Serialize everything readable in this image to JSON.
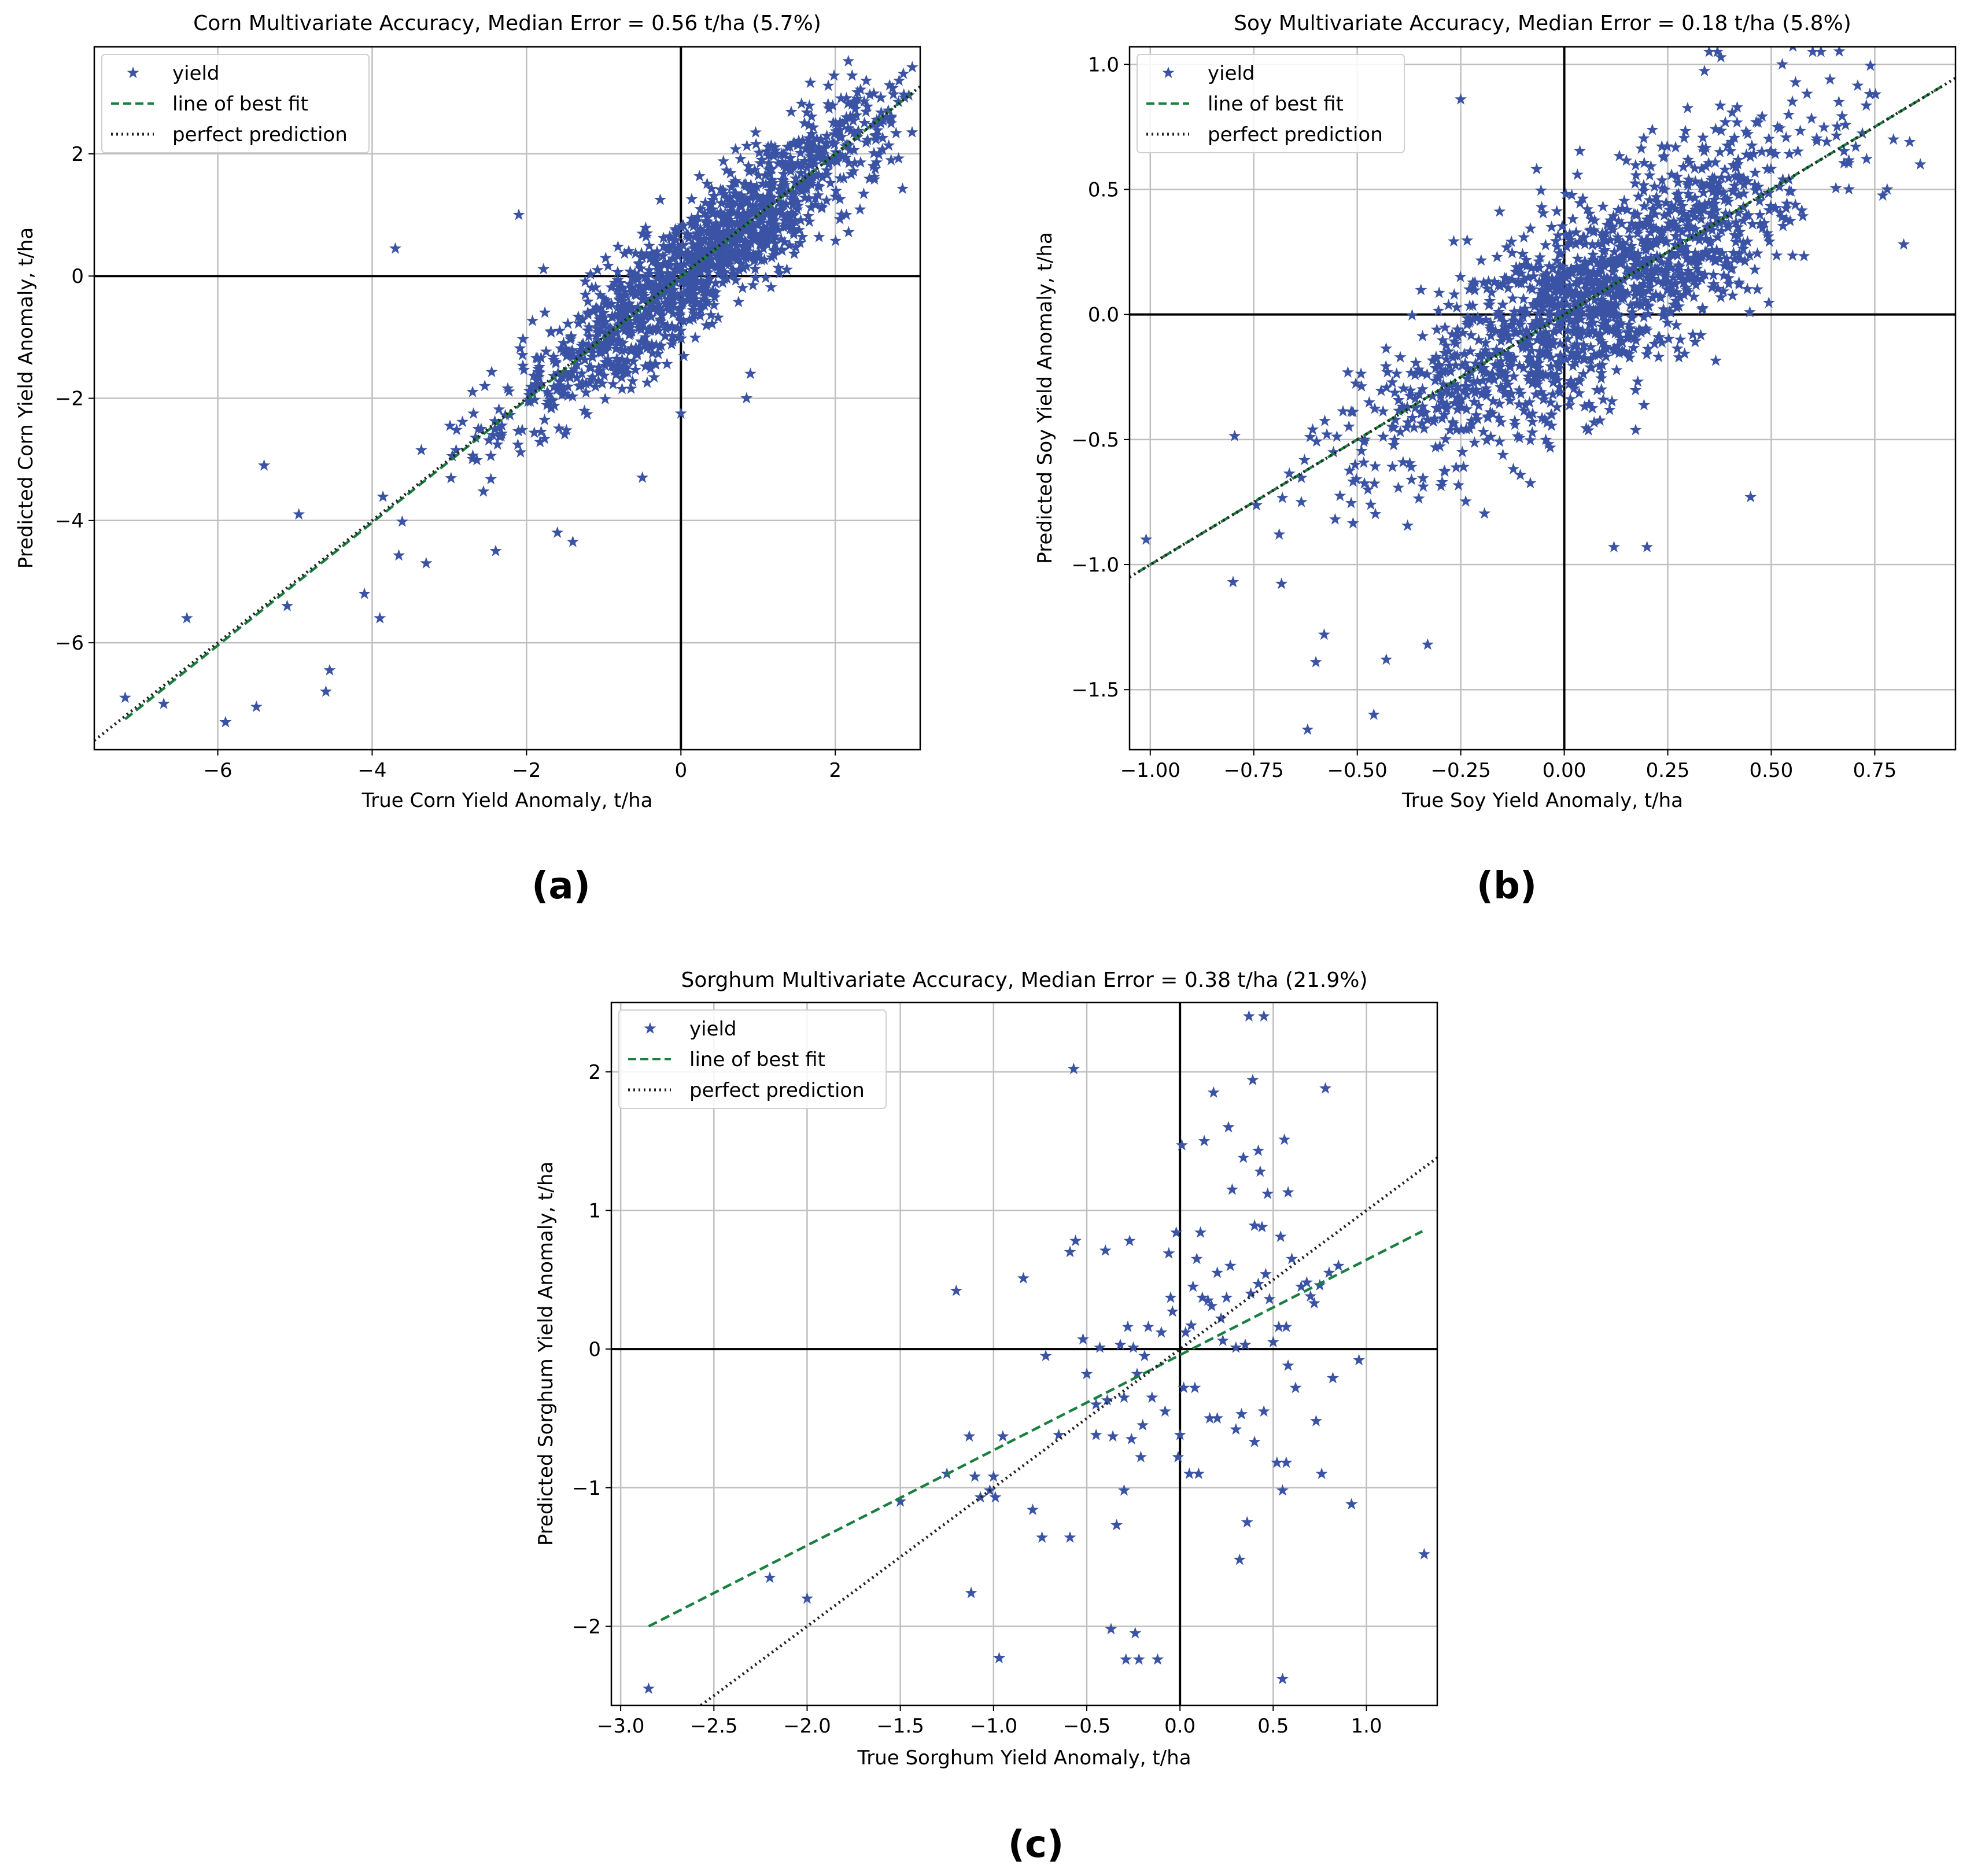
{
  "colors": {
    "points": "#3a53a4",
    "fit": "#1a8040",
    "perfect": "#222222",
    "grid": "#bfbfbf",
    "axis_zero": "#000000",
    "frame": "#000000"
  },
  "chart_data": [
    {
      "type": "scatter",
      "id": "corn",
      "caption": "(a)",
      "title": "Corn Multivariate Accuracy, Median Error = 0.56 t/ha (5.7%)",
      "xlabel": "True Corn Yield Anomaly, t/ha",
      "ylabel": "Predicted Corn Yield Anomaly, t/ha",
      "xlim": [
        -7.6,
        3.1
      ],
      "ylim": [
        -7.75,
        3.75
      ],
      "xticks": [
        -6,
        -4,
        -2,
        0,
        2
      ],
      "yticks": [
        -6,
        -4,
        -2,
        0,
        2
      ],
      "xtick_labels": [
        "−6",
        "−4",
        "−2",
        "0",
        "2"
      ],
      "ytick_labels": [
        "−6",
        "−4",
        "−2",
        "0",
        "2"
      ],
      "grid": true,
      "legend": {
        "position": "top-left",
        "entries": [
          "yield",
          "line of best fit",
          "perfect prediction"
        ]
      },
      "series": [
        {
          "name": "yield",
          "kind": "points",
          "generator": {
            "n": 1400,
            "x_range": [
              -7.2,
              3.0
            ],
            "slope": 0.99,
            "noise": 0.5,
            "center": 0.3,
            "spread": 1.3,
            "seed": 11
          }
        },
        {
          "name": "line of best fit",
          "kind": "line",
          "x": [
            -7.2,
            3.0
          ],
          "y": [
            -7.25,
            3.0
          ]
        },
        {
          "name": "perfect prediction",
          "kind": "line",
          "x": [
            -7.6,
            3.1
          ],
          "y": [
            -7.6,
            3.1
          ]
        }
      ],
      "outliers": [
        [
          -7.2,
          -6.9
        ],
        [
          -6.7,
          -7.0
        ],
        [
          -6.4,
          -5.6
        ],
        [
          -5.9,
          -7.3
        ],
        [
          -5.5,
          -7.05
        ],
        [
          -5.4,
          -3.1
        ],
        [
          -5.1,
          -5.4
        ],
        [
          -4.95,
          -3.9
        ],
        [
          -4.6,
          -6.8
        ],
        [
          -4.55,
          -6.45
        ],
        [
          -4.1,
          -5.2
        ],
        [
          -3.9,
          -5.6
        ],
        [
          -3.7,
          0.45
        ],
        [
          -3.3,
          -4.7
        ],
        [
          -2.4,
          -4.5
        ],
        [
          -2.1,
          1.0
        ],
        [
          -1.6,
          -4.2
        ],
        [
          -1.4,
          -4.35
        ],
        [
          -0.5,
          -3.3
        ],
        [
          0.0,
          -2.25
        ],
        [
          0.85,
          -2.0
        ],
        [
          0.9,
          -1.6
        ]
      ]
    },
    {
      "type": "scatter",
      "id": "soy",
      "caption": "(b)",
      "title": "Soy Multivariate Accuracy, Median Error = 0.18 t/ha (5.8%)",
      "xlabel": "True Soy Yield Anomaly, t/ha",
      "ylabel": "Predicted Soy Yield Anomaly, t/ha",
      "xlim": [
        -1.05,
        0.945
      ],
      "ylim": [
        -1.74,
        1.07
      ],
      "xticks": [
        -1.0,
        -0.75,
        -0.5,
        -0.25,
        0.0,
        0.25,
        0.5,
        0.75
      ],
      "yticks": [
        -1.5,
        -1.0,
        -0.5,
        0.0,
        0.5,
        1.0
      ],
      "xtick_labels": [
        "−1.00",
        "−0.75",
        "−0.50",
        "−0.25",
        "0.00",
        "0.25",
        "0.50",
        "0.75"
      ],
      "ytick_labels": [
        "−1.5",
        "−1.0",
        "−0.5",
        "0.0",
        "0.5",
        "1.0"
      ],
      "grid": true,
      "legend": {
        "position": "top-left",
        "entries": [
          "yield",
          "line of best fit",
          "perfect prediction"
        ]
      },
      "series": [
        {
          "name": "yield",
          "kind": "points",
          "generator": {
            "n": 1500,
            "x_range": [
              -1.02,
              0.85
            ],
            "slope": 1.0,
            "noise": 0.2,
            "center": 0.05,
            "spread": 0.27,
            "seed": 23
          }
        },
        {
          "name": "line of best fit",
          "kind": "line",
          "x": [
            -1.03,
            0.92
          ],
          "y": [
            -1.03,
            0.92
          ]
        },
        {
          "name": "perfect prediction",
          "kind": "line",
          "x": [
            -1.05,
            0.945
          ],
          "y": [
            -1.05,
            0.945
          ]
        }
      ],
      "outliers": [
        [
          -1.01,
          -0.9
        ],
        [
          -0.8,
          -1.07
        ],
        [
          -0.62,
          -1.66
        ],
        [
          -0.6,
          -1.39
        ],
        [
          -0.58,
          -1.28
        ],
        [
          -0.46,
          -1.6
        ],
        [
          -0.43,
          -1.38
        ],
        [
          -0.33,
          -1.32
        ],
        [
          -0.25,
          0.86
        ],
        [
          0.35,
          1.05
        ],
        [
          0.37,
          1.05
        ],
        [
          0.6,
          1.05
        ],
        [
          0.62,
          1.05
        ],
        [
          0.82,
          0.28
        ],
        [
          0.45,
          -0.73
        ],
        [
          0.2,
          -0.93
        ],
        [
          0.12,
          -0.93
        ],
        [
          0.78,
          0.5
        ],
        [
          0.86,
          0.6
        ]
      ]
    },
    {
      "type": "scatter",
      "id": "sorghum",
      "caption": "(c)",
      "title": "Sorghum Multivariate Accuracy, Median Error = 0.38 t/ha (21.9%)",
      "xlabel": "True Sorghum Yield Anomaly, t/ha",
      "ylabel": "Predicted Sorghum Yield Anomaly, t/ha",
      "xlim": [
        -3.05,
        1.38
      ],
      "ylim": [
        -2.57,
        2.5
      ],
      "xticks": [
        -3.0,
        -2.5,
        -2.0,
        -1.5,
        -1.0,
        -0.5,
        0.0,
        0.5,
        1.0
      ],
      "yticks": [
        -2,
        -1,
        0,
        1,
        2
      ],
      "xtick_labels": [
        "−3.0",
        "−2.5",
        "−2.0",
        "−1.5",
        "−1.0",
        "−0.5",
        "0.0",
        "0.5",
        "1.0"
      ],
      "ytick_labels": [
        "−2",
        "−1",
        "0",
        "1",
        "2"
      ],
      "grid": true,
      "legend": {
        "position": "top-left",
        "entries": [
          "yield",
          "line of best fit",
          "perfect prediction"
        ]
      },
      "series": [
        {
          "name": "yield",
          "kind": "points",
          "points": [
            [
              -2.85,
              -2.45
            ],
            [
              -2.2,
              -1.65
            ],
            [
              -2.0,
              -1.8
            ],
            [
              -1.5,
              -1.1
            ],
            [
              -1.25,
              -0.9
            ],
            [
              -1.2,
              0.42
            ],
            [
              -1.13,
              -0.63
            ],
            [
              -1.12,
              -1.76
            ],
            [
              -1.1,
              -0.92
            ],
            [
              -1.07,
              -1.07
            ],
            [
              -1.02,
              -1.02
            ],
            [
              -1.0,
              -0.92
            ],
            [
              -0.99,
              -1.07
            ],
            [
              -0.97,
              -2.23
            ],
            [
              -0.95,
              -0.63
            ],
            [
              -0.84,
              0.51
            ],
            [
              -0.79,
              -1.16
            ],
            [
              -0.74,
              -1.36
            ],
            [
              -0.72,
              -0.05
            ],
            [
              -0.65,
              -0.62
            ],
            [
              -0.59,
              0.7
            ],
            [
              -0.59,
              -1.36
            ],
            [
              -0.57,
              2.02
            ],
            [
              -0.56,
              0.78
            ],
            [
              -0.52,
              0.07
            ],
            [
              -0.5,
              -0.18
            ],
            [
              -0.45,
              -0.4
            ],
            [
              -0.45,
              -0.62
            ],
            [
              -0.43,
              0.01
            ],
            [
              -0.4,
              0.71
            ],
            [
              -0.39,
              -0.37
            ],
            [
              -0.37,
              -2.02
            ],
            [
              -0.36,
              -0.63
            ],
            [
              -0.34,
              -1.27
            ],
            [
              -0.32,
              0.03
            ],
            [
              -0.3,
              -0.35
            ],
            [
              -0.3,
              -1.02
            ],
            [
              -0.29,
              -2.24
            ],
            [
              -0.28,
              0.16
            ],
            [
              -0.27,
              0.78
            ],
            [
              -0.26,
              -0.65
            ],
            [
              -0.25,
              0.01
            ],
            [
              -0.24,
              -2.05
            ],
            [
              -0.23,
              -0.18
            ],
            [
              -0.22,
              -2.24
            ],
            [
              -0.21,
              -0.78
            ],
            [
              -0.2,
              -0.55
            ],
            [
              -0.19,
              -0.05
            ],
            [
              -0.17,
              0.16
            ],
            [
              -0.15,
              -0.35
            ],
            [
              -0.12,
              -2.24
            ],
            [
              -0.1,
              0.12
            ],
            [
              -0.08,
              -0.45
            ],
            [
              -0.06,
              0.69
            ],
            [
              -0.05,
              0.37
            ],
            [
              -0.04,
              0.27
            ],
            [
              -0.02,
              0.84
            ],
            [
              -0.01,
              -0.78
            ],
            [
              0.0,
              -0.62
            ],
            [
              0.01,
              1.47
            ],
            [
              0.02,
              -0.28
            ],
            [
              0.03,
              0.12
            ],
            [
              0.05,
              -0.9
            ],
            [
              0.06,
              0.17
            ],
            [
              0.07,
              0.45
            ],
            [
              0.08,
              -0.28
            ],
            [
              0.09,
              0.65
            ],
            [
              0.1,
              -0.9
            ],
            [
              0.11,
              0.84
            ],
            [
              0.12,
              0.37
            ],
            [
              0.13,
              1.5
            ],
            [
              0.15,
              0.35
            ],
            [
              0.16,
              -0.5
            ],
            [
              0.17,
              0.31
            ],
            [
              0.18,
              1.85
            ],
            [
              0.2,
              0.55
            ],
            [
              0.2,
              -0.5
            ],
            [
              0.22,
              0.22
            ],
            [
              0.23,
              0.06
            ],
            [
              0.25,
              0.37
            ],
            [
              0.26,
              1.6
            ],
            [
              0.27,
              0.6
            ],
            [
              0.28,
              1.15
            ],
            [
              0.3,
              -0.58
            ],
            [
              0.3,
              0.01
            ],
            [
              0.32,
              -1.52
            ],
            [
              0.33,
              -0.47
            ],
            [
              0.34,
              1.38
            ],
            [
              0.35,
              0.03
            ],
            [
              0.36,
              -1.25
            ],
            [
              0.37,
              2.4
            ],
            [
              0.38,
              0.4
            ],
            [
              0.39,
              1.94
            ],
            [
              0.4,
              0.89
            ],
            [
              0.4,
              -0.67
            ],
            [
              0.42,
              1.43
            ],
            [
              0.42,
              0.47
            ],
            [
              0.43,
              1.28
            ],
            [
              0.44,
              0.88
            ],
            [
              0.45,
              -0.45
            ],
            [
              0.45,
              2.4
            ],
            [
              0.46,
              0.54
            ],
            [
              0.47,
              1.12
            ],
            [
              0.48,
              0.36
            ],
            [
              0.5,
              0.05
            ],
            [
              0.52,
              -0.82
            ],
            [
              0.53,
              0.16
            ],
            [
              0.54,
              0.81
            ],
            [
              0.55,
              -1.02
            ],
            [
              0.55,
              -2.38
            ],
            [
              0.56,
              1.51
            ],
            [
              0.57,
              0.16
            ],
            [
              0.57,
              -0.82
            ],
            [
              0.58,
              1.13
            ],
            [
              0.58,
              -0.12
            ],
            [
              0.6,
              0.65
            ],
            [
              0.62,
              -0.28
            ],
            [
              0.65,
              0.45
            ],
            [
              0.68,
              0.48
            ],
            [
              0.7,
              0.38
            ],
            [
              0.72,
              0.33
            ],
            [
              0.73,
              -0.52
            ],
            [
              0.75,
              0.46
            ],
            [
              0.76,
              -0.9
            ],
            [
              0.78,
              1.88
            ],
            [
              0.8,
              0.55
            ],
            [
              0.82,
              -0.21
            ],
            [
              0.85,
              0.6
            ],
            [
              0.92,
              -1.12
            ],
            [
              0.96,
              -0.08
            ],
            [
              1.31,
              -1.48
            ]
          ]
        },
        {
          "name": "line of best fit",
          "kind": "line",
          "x": [
            -2.85,
            1.3
          ],
          "y": [
            -2.0,
            0.85
          ]
        },
        {
          "name": "perfect prediction",
          "kind": "line",
          "x": [
            -2.57,
            1.38
          ],
          "y": [
            -2.57,
            1.38
          ]
        }
      ]
    }
  ]
}
